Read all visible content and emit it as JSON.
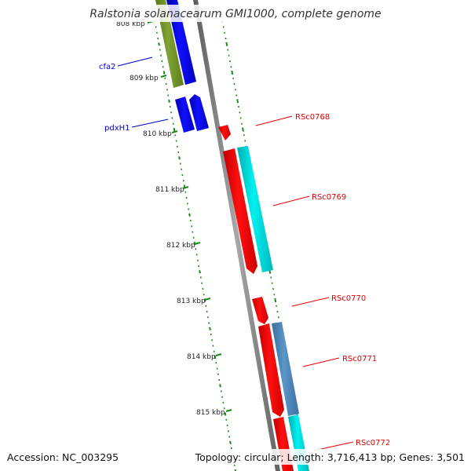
{
  "title": "Ralstonia solanacearum GMI1000, complete genome",
  "accession": "Accession: NC_003295",
  "summary": "Topology: circular; Length: 3,716,413 bp; Genes: 3,501",
  "kbp_labels": [
    "808 kbp",
    "809 kbp",
    "810 kbp",
    "811 kbp",
    "812 kbp",
    "813 kbp",
    "814 kbp",
    "815 kbp"
  ],
  "genes_left": [
    {
      "name": "cfa2",
      "color": "#0000c8"
    },
    {
      "name": "pdxH1",
      "color": "#0000c8"
    }
  ],
  "genes_right": [
    {
      "name": "RSc0768",
      "color": "#e00000"
    },
    {
      "name": "RSc0769",
      "color": "#e00000"
    },
    {
      "name": "RSc0770",
      "color": "#e00000"
    },
    {
      "name": "RSc0771",
      "color": "#e00000"
    },
    {
      "name": "RSc0772",
      "color": "#e00000"
    }
  ],
  "colors": {
    "backbone": "#808080",
    "tick": "#1a8a1a",
    "forward_cds": "#0000ff",
    "reverse_cds": "#ff0000",
    "cyan_feature": "#00d8d8",
    "steelblue_feature": "#4682b4",
    "olive_feature": "#6b8e23"
  }
}
